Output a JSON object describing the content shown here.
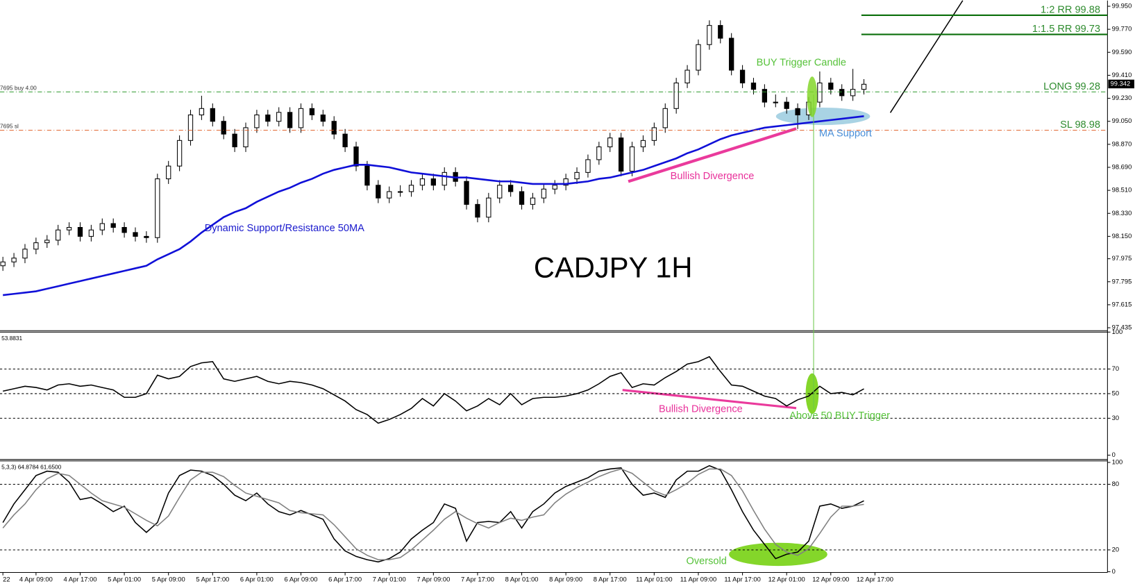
{
  "chart_data": [
    {
      "type": "candlestick",
      "title": "CADJPY 1H",
      "ohlc": [
        [
          97.92,
          97.99,
          97.88,
          97.95
        ],
        [
          97.95,
          98.02,
          97.91,
          97.98
        ],
        [
          97.98,
          98.09,
          97.94,
          98.05
        ],
        [
          98.05,
          98.14,
          98.01,
          98.1
        ],
        [
          98.1,
          98.16,
          98.06,
          98.12
        ],
        [
          98.12,
          98.24,
          98.08,
          98.2
        ],
        [
          98.2,
          98.26,
          98.16,
          98.22
        ],
        [
          98.22,
          98.26,
          98.11,
          98.15
        ],
        [
          98.15,
          98.24,
          98.11,
          98.2
        ],
        [
          98.2,
          98.29,
          98.16,
          98.25
        ],
        [
          98.25,
          98.29,
          98.18,
          98.22
        ],
        [
          98.22,
          98.26,
          98.14,
          98.18
        ],
        [
          98.18,
          98.22,
          98.11,
          98.15
        ],
        [
          98.15,
          98.19,
          98.1,
          98.14
        ],
        [
          98.14,
          98.64,
          98.1,
          98.6
        ],
        [
          98.6,
          98.74,
          98.56,
          98.7
        ],
        [
          98.7,
          98.94,
          98.66,
          98.9
        ],
        [
          98.9,
          99.14,
          98.86,
          99.1
        ],
        [
          99.1,
          99.25,
          99.06,
          99.15
        ],
        [
          99.15,
          99.19,
          99.01,
          99.05
        ],
        [
          99.05,
          99.09,
          98.91,
          98.95
        ],
        [
          98.95,
          98.99,
          98.81,
          98.85
        ],
        [
          98.85,
          99.04,
          98.81,
          99.0
        ],
        [
          99.0,
          99.14,
          98.96,
          99.1
        ],
        [
          99.1,
          99.14,
          99.01,
          99.05
        ],
        [
          99.05,
          99.16,
          99.01,
          99.12
        ],
        [
          99.12,
          99.16,
          98.96,
          99.0
        ],
        [
          99.0,
          99.19,
          98.96,
          99.15
        ],
        [
          99.15,
          99.19,
          99.06,
          99.1
        ],
        [
          99.1,
          99.14,
          99.01,
          99.05
        ],
        [
          99.05,
          99.09,
          98.91,
          98.95
        ],
        [
          98.95,
          98.99,
          98.81,
          98.85
        ],
        [
          98.85,
          98.89,
          98.66,
          98.7
        ],
        [
          98.7,
          98.74,
          98.51,
          98.55
        ],
        [
          98.55,
          98.59,
          98.41,
          98.45
        ],
        [
          98.45,
          98.54,
          98.41,
          98.5
        ],
        [
          98.5,
          98.55,
          98.46,
          98.5
        ],
        [
          98.5,
          98.59,
          98.46,
          98.55
        ],
        [
          98.55,
          98.64,
          98.51,
          98.6
        ],
        [
          98.6,
          98.64,
          98.51,
          98.55
        ],
        [
          98.55,
          98.69,
          98.51,
          98.65
        ],
        [
          98.65,
          98.69,
          98.54,
          98.58
        ],
        [
          98.58,
          98.62,
          98.36,
          98.4
        ],
        [
          98.4,
          98.44,
          98.26,
          98.3
        ],
        [
          98.3,
          98.49,
          98.26,
          98.45
        ],
        [
          98.45,
          98.59,
          98.41,
          98.55
        ],
        [
          98.55,
          98.59,
          98.46,
          98.5
        ],
        [
          98.5,
          98.54,
          98.36,
          98.4
        ],
        [
          98.4,
          98.49,
          98.36,
          98.45
        ],
        [
          98.45,
          98.56,
          98.41,
          98.52
        ],
        [
          98.52,
          98.59,
          98.48,
          98.55
        ],
        [
          98.55,
          98.64,
          98.51,
          98.6
        ],
        [
          98.6,
          98.69,
          98.56,
          98.65
        ],
        [
          98.65,
          98.79,
          98.61,
          98.75
        ],
        [
          98.75,
          98.89,
          98.71,
          98.85
        ],
        [
          98.85,
          98.96,
          98.81,
          98.92
        ],
        [
          98.92,
          98.96,
          98.62,
          98.66
        ],
        [
          98.66,
          98.89,
          98.62,
          98.85
        ],
        [
          98.85,
          98.94,
          98.81,
          98.9
        ],
        [
          98.9,
          99.04,
          98.86,
          99.0
        ],
        [
          99.0,
          99.19,
          98.96,
          99.15
        ],
        [
          99.15,
          99.39,
          99.11,
          99.35
        ],
        [
          99.35,
          99.49,
          99.31,
          99.45
        ],
        [
          99.45,
          99.69,
          99.41,
          99.65
        ],
        [
          99.65,
          99.84,
          99.61,
          99.8
        ],
        [
          99.8,
          99.84,
          99.66,
          99.7
        ],
        [
          99.7,
          99.74,
          99.41,
          99.45
        ],
        [
          99.45,
          99.49,
          99.31,
          99.35
        ],
        [
          99.35,
          99.39,
          99.26,
          99.3
        ],
        [
          99.3,
          99.34,
          99.16,
          99.2
        ],
        [
          99.2,
          99.26,
          99.16,
          99.2
        ],
        [
          99.2,
          99.24,
          99.11,
          99.15
        ],
        [
          99.15,
          99.19,
          98.99,
          99.1
        ],
        [
          99.1,
          99.24,
          99.06,
          99.2
        ],
        [
          99.2,
          99.44,
          99.16,
          99.35
        ],
        [
          99.35,
          99.39,
          99.26,
          99.3
        ],
        [
          99.3,
          99.34,
          99.21,
          99.25
        ],
        [
          99.25,
          99.46,
          99.21,
          99.3
        ],
        [
          99.3,
          99.38,
          99.26,
          99.34
        ]
      ],
      "ma_color": "#1010d8",
      "ma_values": [
        97.69,
        97.7,
        97.71,
        97.72,
        97.74,
        97.76,
        97.78,
        97.8,
        97.82,
        97.84,
        97.86,
        97.88,
        97.9,
        97.92,
        97.97,
        98.01,
        98.05,
        98.11,
        98.18,
        98.24,
        98.3,
        98.34,
        98.37,
        98.42,
        98.46,
        98.5,
        98.53,
        98.57,
        98.6,
        98.64,
        98.67,
        98.69,
        98.71,
        98.71,
        98.7,
        98.69,
        98.67,
        98.65,
        98.64,
        98.63,
        98.62,
        98.61,
        98.61,
        98.6,
        98.59,
        98.58,
        98.58,
        98.57,
        98.56,
        98.56,
        98.56,
        98.56,
        98.57,
        98.58,
        98.6,
        98.61,
        98.63,
        98.65,
        98.67,
        98.7,
        98.73,
        98.76,
        98.8,
        98.83,
        98.87,
        98.91,
        98.94,
        98.96,
        98.98,
        99.0,
        99.01,
        99.02,
        99.03,
        99.04,
        99.05,
        99.06,
        99.07,
        99.08,
        99.09
      ],
      "ylim": [
        97.418,
        99.995
      ],
      "yticks": [
        {
          "value": 99.95,
          "label": "99.950"
        },
        {
          "value": 99.77,
          "label": "99.770"
        },
        {
          "value": 99.59,
          "label": "99.590"
        },
        {
          "value": 99.41,
          "label": "99.410"
        },
        {
          "value": 99.23,
          "label": "99.230"
        },
        {
          "value": 99.05,
          "label": "99.050"
        },
        {
          "value": 98.87,
          "label": "98.870"
        },
        {
          "value": 98.69,
          "label": "98.690"
        },
        {
          "value": 98.51,
          "label": "98.510"
        },
        {
          "value": 98.33,
          "label": "98.330"
        },
        {
          "value": 98.15,
          "label": "98.150"
        },
        {
          "value": 97.975,
          "label": "97.975"
        },
        {
          "value": 97.795,
          "label": "97.795"
        },
        {
          "value": 97.615,
          "label": "97.615"
        },
        {
          "value": 97.435,
          "label": "97.435"
        }
      ],
      "xticks": [
        {
          "value": 0,
          "label": "22"
        },
        {
          "value": 3,
          "label": "4 Apr 09:00"
        },
        {
          "value": 7,
          "label": "4 Apr 17:00"
        },
        {
          "value": 11,
          "label": "5 Apr 01:00"
        },
        {
          "value": 15,
          "label": "5 Apr 09:00"
        },
        {
          "value": 19,
          "label": "5 Apr 17:00"
        },
        {
          "value": 23,
          "label": "6 Apr 01:00"
        },
        {
          "value": 27,
          "label": "6 Apr 09:00"
        },
        {
          "value": 31,
          "label": "6 Apr 17:00"
        },
        {
          "value": 35,
          "label": "7 Apr 01:00"
        },
        {
          "value": 39,
          "label": "7 Apr 09:00"
        },
        {
          "value": 43,
          "label": "7 Apr 17:00"
        },
        {
          "value": 47,
          "label": "8 Apr 01:00"
        },
        {
          "value": 51,
          "label": "8 Apr 09:00"
        },
        {
          "value": 55,
          "label": "8 Apr 17:00"
        },
        {
          "value": 59,
          "label": "11 Apr 01:00"
        },
        {
          "value": 63,
          "label": "11 Apr 09:00"
        },
        {
          "value": 67,
          "label": "11 Apr 17:00"
        },
        {
          "value": 71,
          "label": "12 Apr 01:00"
        },
        {
          "value": 75,
          "label": "12 Apr 09:00"
        },
        {
          "value": 79,
          "label": "12 Apr 17:00"
        }
      ],
      "last_price": 99.342,
      "levels": [
        {
          "label": "1:2 RR 99.88",
          "value": 99.88,
          "color": "#0a6e0a",
          "style": "solid"
        },
        {
          "label": "1:1.5 RR 99.73",
          "value": 99.73,
          "color": "#0a6e0a",
          "style": "solid"
        },
        {
          "label": "LONG 99.28",
          "value": 99.28,
          "color": "#2e9a2e",
          "style": "dashdot",
          "tag": "7695 buy 4.00"
        },
        {
          "label": "SL 98.98",
          "value": 98.98,
          "color": "#e0602a",
          "style": "dashdot",
          "tag": "7695 sl"
        }
      ],
      "annotations": [
        "Dynamic Support/Resistance 50MA",
        "Bullish Divergence",
        "BUY Trigger Candle",
        "MA Support"
      ]
    },
    {
      "type": "line",
      "header": "53.8831",
      "series": [
        {
          "color": "#000000",
          "values": [
            52,
            54,
            56,
            55,
            53,
            57,
            58,
            56,
            57,
            55,
            53,
            47,
            47,
            50,
            65,
            62,
            64,
            72,
            75,
            76,
            62,
            60,
            62,
            64,
            60,
            58,
            60,
            59,
            57,
            54,
            49,
            44,
            37,
            33,
            26,
            29,
            33,
            38,
            46,
            40,
            50,
            44,
            36,
            40,
            46,
            41,
            50,
            41,
            46,
            47,
            47,
            48,
            50,
            53,
            58,
            64,
            67,
            55,
            58,
            57,
            63,
            68,
            74,
            76,
            80,
            68,
            57,
            56,
            52,
            48,
            46,
            40,
            45,
            48,
            56,
            50,
            51,
            49,
            53.8831
          ]
        }
      ],
      "ylim": [
        0,
        100
      ],
      "yticks": [
        100,
        70,
        50,
        30,
        0
      ],
      "levels": [
        70,
        50,
        30
      ],
      "annotations": [
        "Bullish Divergence",
        "Above 50 BUY Trigger"
      ]
    },
    {
      "type": "line",
      "header": "5,3,3) 64.8784 61.6500",
      "series": [
        {
          "color": "#000000",
          "values": [
            45,
            62,
            75,
            88,
            92,
            91,
            82,
            66,
            68,
            62,
            55,
            60,
            45,
            36,
            45,
            72,
            88,
            93,
            92,
            88,
            80,
            70,
            65,
            72,
            62,
            55,
            52,
            56,
            52,
            48,
            30,
            19,
            14,
            11,
            9,
            12,
            18,
            30,
            38,
            45,
            62,
            58,
            28,
            45,
            46,
            45,
            55,
            40,
            55,
            62,
            72,
            78,
            82,
            86,
            92,
            94,
            95,
            80,
            70,
            72,
            68,
            84,
            92,
            92,
            97,
            93,
            75,
            55,
            38,
            25,
            12,
            16,
            18,
            28,
            60,
            62,
            58,
            60,
            64.8784
          ]
        },
        {
          "color": "#808080",
          "values": [
            40,
            52,
            62,
            75,
            85,
            90,
            88,
            80,
            72,
            65,
            62,
            59,
            53,
            47,
            42,
            51,
            68,
            84,
            91,
            91,
            87,
            79,
            72,
            69,
            66,
            63,
            56,
            54,
            53,
            52,
            43,
            32,
            21,
            15,
            11,
            11,
            13,
            20,
            29,
            38,
            48,
            55,
            49,
            44,
            40,
            45,
            49,
            47,
            50,
            52,
            63,
            71,
            77,
            82,
            87,
            91,
            94,
            90,
            82,
            74,
            70,
            75,
            81,
            89,
            94,
            94,
            88,
            74,
            56,
            39,
            25,
            18,
            15,
            21,
            35,
            50,
            60,
            60,
            61.65
          ]
        }
      ],
      "ylim": [
        0,
        100
      ],
      "yticks": [
        100,
        80,
        20,
        0
      ],
      "levels": [
        80,
        20
      ],
      "annotations": [
        "Oversold"
      ]
    }
  ]
}
